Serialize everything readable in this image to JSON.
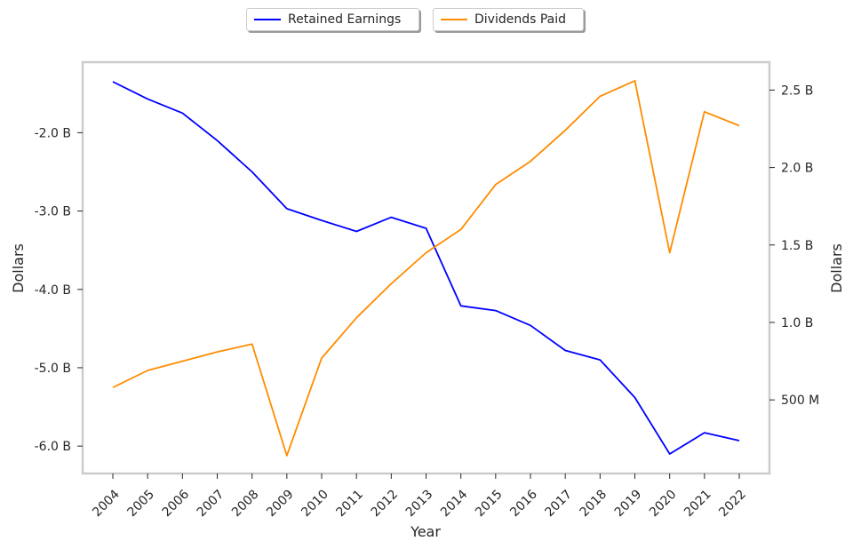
{
  "chart_data": {
    "type": "line",
    "xlabel": "Year",
    "ylabel_left": "Dollars",
    "ylabel_right": "Dollars",
    "x": [
      "2004",
      "2005",
      "2006",
      "2007",
      "2008",
      "2009",
      "2010",
      "2011",
      "2012",
      "2013",
      "2014",
      "2015",
      "2016",
      "2017",
      "2018",
      "2019",
      "2020",
      "2021",
      "2022"
    ],
    "series": [
      {
        "name": "Retained Earnings",
        "axis": "left",
        "color": "#0000ff",
        "values": [
          -1.35,
          -1.57,
          -1.75,
          -2.1,
          -2.5,
          -2.97,
          -3.12,
          -3.26,
          -3.08,
          -3.22,
          -4.21,
          -4.27,
          -4.46,
          -4.78,
          -4.9,
          -5.38,
          -6.1,
          -5.83,
          -5.93
        ]
      },
      {
        "name": "Dividends Paid",
        "axis": "right",
        "color": "#ff8c00",
        "values": [
          0.58,
          0.69,
          0.75,
          0.81,
          0.86,
          0.14,
          0.77,
          1.03,
          1.25,
          1.45,
          1.6,
          1.89,
          2.04,
          2.24,
          2.46,
          2.56,
          1.45,
          2.36,
          2.27
        ]
      }
    ],
    "y_left": {
      "ylim": [
        -6.35,
        -1.1
      ],
      "ticks": [
        -2.0,
        -3.0,
        -4.0,
        -5.0,
        -6.0
      ],
      "tick_labels": [
        "-2.0 B",
        "-3.0 B",
        "-4.0 B",
        "-5.0 B",
        "-6.0 B"
      ]
    },
    "y_right": {
      "ylim": [
        0.025,
        2.68
      ],
      "ticks": [
        0.5,
        1.0,
        1.5,
        2.0,
        2.5
      ],
      "tick_labels": [
        "500 M",
        "1.0 B",
        "1.5 B",
        "2.0 B",
        "2.5 B"
      ]
    },
    "legend": {
      "placement": "top-center",
      "framed": true
    },
    "grid": false
  }
}
